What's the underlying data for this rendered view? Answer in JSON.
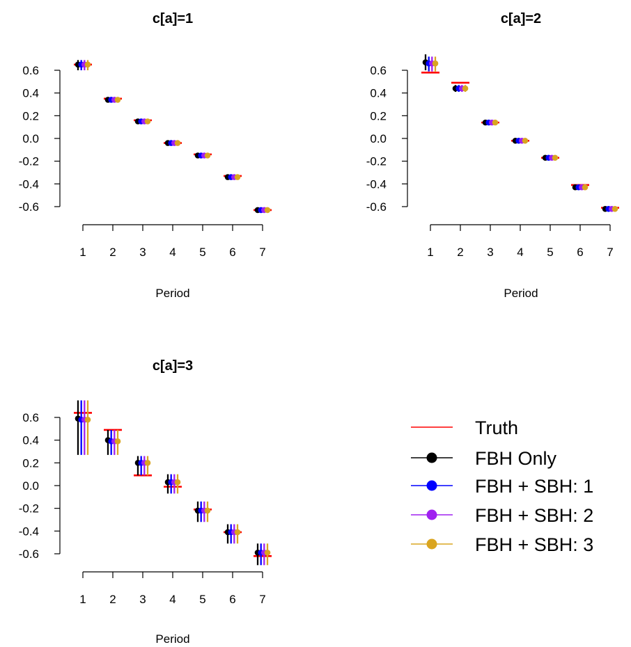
{
  "legend": {
    "placement": "right",
    "items": [
      {
        "label": "Truth",
        "color": "#ff0000",
        "marker": "line"
      },
      {
        "label": "FBH Only",
        "color": "#000000",
        "marker": "dot"
      },
      {
        "label": "FBH + SBH: 1",
        "color": "#0000ff",
        "marker": "dot"
      },
      {
        "label": "FBH + SBH: 2",
        "color": "#a020f0",
        "marker": "dot"
      },
      {
        "label": "FBH + SBH: 3",
        "color": "#daa520",
        "marker": "dot"
      }
    ]
  },
  "chart_data": [
    {
      "type": "scatter",
      "title": "c[a]=1",
      "xlabel": "Period",
      "ylabel": "",
      "x": [
        1,
        2,
        3,
        4,
        5,
        6,
        7
      ],
      "x_ticks": [
        "1",
        "2",
        "3",
        "4",
        "5",
        "6",
        "7"
      ],
      "y_ticks": [
        "0.6",
        "0.4",
        "0.2",
        "0.0",
        "-0.2",
        "-0.4",
        "-0.6"
      ],
      "ylim": [
        -0.6,
        0.6
      ],
      "grid": false,
      "truth": [
        0.65,
        0.35,
        0.16,
        -0.04,
        -0.14,
        -0.33,
        -0.63
      ],
      "series": [
        {
          "name": "FBH Only",
          "color": "#000000",
          "values": [
            0.65,
            0.34,
            0.15,
            -0.04,
            -0.15,
            -0.34,
            -0.63
          ],
          "lower": [
            0.6,
            0.32,
            0.14,
            -0.06,
            -0.17,
            -0.35,
            -0.65
          ],
          "upper": [
            0.69,
            0.36,
            0.17,
            -0.02,
            -0.13,
            -0.32,
            -0.61
          ]
        },
        {
          "name": "FBH + SBH: 1",
          "color": "#0000ff",
          "values": [
            0.65,
            0.34,
            0.15,
            -0.04,
            -0.15,
            -0.34,
            -0.63
          ],
          "lower": [
            0.6,
            0.32,
            0.14,
            -0.06,
            -0.17,
            -0.35,
            -0.65
          ],
          "upper": [
            0.69,
            0.36,
            0.17,
            -0.02,
            -0.13,
            -0.32,
            -0.61
          ]
        },
        {
          "name": "FBH + SBH: 2",
          "color": "#a020f0",
          "values": [
            0.65,
            0.34,
            0.15,
            -0.04,
            -0.15,
            -0.34,
            -0.63
          ],
          "lower": [
            0.6,
            0.32,
            0.14,
            -0.06,
            -0.17,
            -0.35,
            -0.65
          ],
          "upper": [
            0.69,
            0.36,
            0.17,
            -0.02,
            -0.13,
            -0.32,
            -0.61
          ]
        },
        {
          "name": "FBH + SBH: 3",
          "color": "#daa520",
          "values": [
            0.65,
            0.34,
            0.15,
            -0.04,
            -0.15,
            -0.34,
            -0.63
          ],
          "lower": [
            0.6,
            0.32,
            0.14,
            -0.06,
            -0.17,
            -0.35,
            -0.65
          ],
          "upper": [
            0.69,
            0.36,
            0.17,
            -0.02,
            -0.13,
            -0.32,
            -0.61
          ]
        }
      ]
    },
    {
      "type": "scatter",
      "title": "c[a]=2",
      "xlabel": "Period",
      "ylabel": "",
      "x": [
        1,
        2,
        3,
        4,
        5,
        6,
        7
      ],
      "x_ticks": [
        "1",
        "2",
        "3",
        "4",
        "5",
        "6",
        "7"
      ],
      "y_ticks": [
        "0.6",
        "0.4",
        "0.2",
        "0.0",
        "-0.2",
        "-0.4",
        "-0.6"
      ],
      "ylim": [
        -0.6,
        0.6
      ],
      "grid": false,
      "truth": [
        0.58,
        0.49,
        0.14,
        -0.02,
        -0.17,
        -0.41,
        -0.61
      ],
      "series": [
        {
          "name": "FBH Only",
          "color": "#000000",
          "values": [
            0.67,
            0.44,
            0.14,
            -0.02,
            -0.17,
            -0.43,
            -0.62
          ],
          "lower": [
            0.6,
            0.41,
            0.12,
            -0.04,
            -0.19,
            -0.45,
            -0.64
          ],
          "upper": [
            0.74,
            0.47,
            0.16,
            -0.01,
            -0.15,
            -0.41,
            -0.6
          ]
        },
        {
          "name": "FBH + SBH: 1",
          "color": "#0000ff",
          "values": [
            0.66,
            0.44,
            0.14,
            -0.02,
            -0.17,
            -0.43,
            -0.62
          ],
          "lower": [
            0.59,
            0.41,
            0.12,
            -0.04,
            -0.19,
            -0.45,
            -0.64
          ],
          "upper": [
            0.72,
            0.47,
            0.16,
            -0.01,
            -0.15,
            -0.41,
            -0.6
          ]
        },
        {
          "name": "FBH + SBH: 2",
          "color": "#a020f0",
          "values": [
            0.66,
            0.44,
            0.14,
            -0.02,
            -0.17,
            -0.43,
            -0.62
          ],
          "lower": [
            0.59,
            0.41,
            0.12,
            -0.04,
            -0.19,
            -0.45,
            -0.64
          ],
          "upper": [
            0.72,
            0.47,
            0.16,
            -0.01,
            -0.15,
            -0.41,
            -0.6
          ]
        },
        {
          "name": "FBH + SBH: 3",
          "color": "#daa520",
          "values": [
            0.66,
            0.44,
            0.14,
            -0.02,
            -0.17,
            -0.43,
            -0.62
          ],
          "lower": [
            0.59,
            0.41,
            0.12,
            -0.04,
            -0.19,
            -0.45,
            -0.64
          ],
          "upper": [
            0.72,
            0.47,
            0.16,
            -0.01,
            -0.15,
            -0.41,
            -0.6
          ]
        }
      ]
    },
    {
      "type": "scatter",
      "title": "c[a]=3",
      "xlabel": "Period",
      "ylabel": "",
      "x": [
        1,
        2,
        3,
        4,
        5,
        6,
        7
      ],
      "x_ticks": [
        "1",
        "2",
        "3",
        "4",
        "5",
        "6",
        "7"
      ],
      "y_ticks": [
        "0.6",
        "0.4",
        "0.2",
        "0.0",
        "-0.2",
        "-0.4",
        "-0.6"
      ],
      "ylim": [
        -0.6,
        0.6
      ],
      "grid": false,
      "truth": [
        0.64,
        0.49,
        0.09,
        -0.01,
        -0.21,
        -0.41,
        -0.62
      ],
      "series": [
        {
          "name": "FBH Only",
          "color": "#000000",
          "values": [
            0.59,
            0.4,
            0.2,
            0.03,
            -0.22,
            -0.41,
            -0.59
          ],
          "lower": [
            0.27,
            0.27,
            0.09,
            -0.07,
            -0.32,
            -0.51,
            -0.7
          ],
          "upper": [
            0.75,
            0.49,
            0.26,
            0.1,
            -0.14,
            -0.34,
            -0.51
          ]
        },
        {
          "name": "FBH + SBH: 1",
          "color": "#0000ff",
          "values": [
            0.58,
            0.39,
            0.2,
            0.03,
            -0.22,
            -0.41,
            -0.59
          ],
          "lower": [
            0.27,
            0.27,
            0.09,
            -0.07,
            -0.32,
            -0.51,
            -0.7
          ],
          "upper": [
            0.75,
            0.49,
            0.26,
            0.1,
            -0.14,
            -0.34,
            -0.51
          ]
        },
        {
          "name": "FBH + SBH: 2",
          "color": "#a020f0",
          "values": [
            0.58,
            0.39,
            0.2,
            0.03,
            -0.22,
            -0.41,
            -0.59
          ],
          "lower": [
            0.27,
            0.27,
            0.09,
            -0.07,
            -0.32,
            -0.51,
            -0.7
          ],
          "upper": [
            0.75,
            0.49,
            0.26,
            0.1,
            -0.14,
            -0.34,
            -0.51
          ]
        },
        {
          "name": "FBH + SBH: 3",
          "color": "#daa520",
          "values": [
            0.58,
            0.39,
            0.2,
            0.03,
            -0.22,
            -0.41,
            -0.59
          ],
          "lower": [
            0.27,
            0.27,
            0.09,
            -0.07,
            -0.32,
            -0.51,
            -0.7
          ],
          "upper": [
            0.75,
            0.49,
            0.26,
            0.1,
            -0.14,
            -0.34,
            -0.51
          ]
        }
      ]
    }
  ]
}
